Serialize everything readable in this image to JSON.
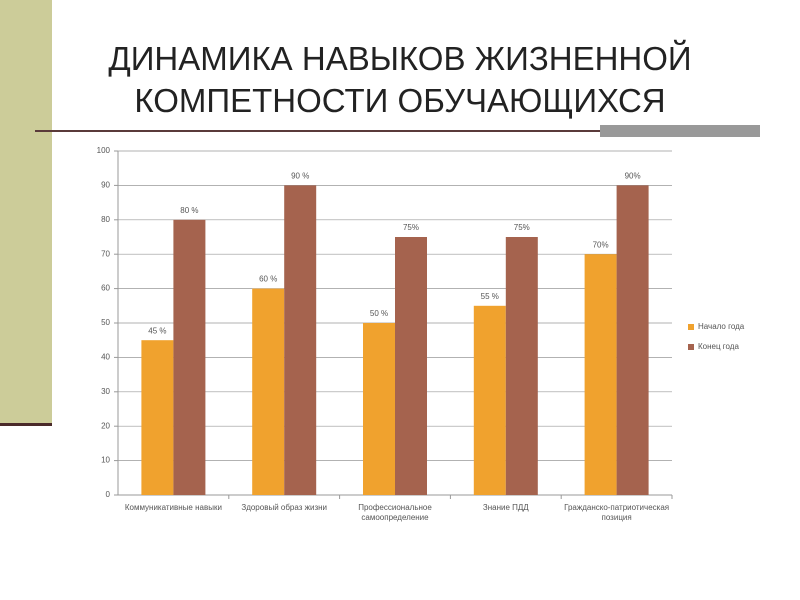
{
  "chart_data": {
    "type": "bar",
    "title": "ДИНАМИКА НАВЫКОВ ЖИЗНЕННОЙ КОМПЕТНОСТИ ОБУЧАЮЩИХСЯ",
    "categories": [
      "Коммуникативные навыки",
      "Здоровый образ жизни",
      "Профессиональное самоопределение",
      "Знание ПДД",
      "Гражданско-патриотическая позиция"
    ],
    "series": [
      {
        "name": "Начало года",
        "color": "#f0a22e",
        "values": [
          45,
          60,
          50,
          55,
          70
        ],
        "value_labels": [
          "45 %",
          "60 %",
          "50 %",
          "55 %",
          "70%"
        ]
      },
      {
        "name": "Конец года",
        "color": "#a5634e",
        "values": [
          80,
          90,
          75,
          75,
          90
        ],
        "value_labels": [
          "80 %",
          "90 %",
          "75%",
          "75%",
          "90%"
        ]
      }
    ],
    "ylim": [
      0,
      100
    ],
    "yticks": [
      0,
      10,
      20,
      30,
      40,
      50,
      60,
      70,
      80,
      90,
      100
    ],
    "grid": true,
    "legend": "right"
  }
}
